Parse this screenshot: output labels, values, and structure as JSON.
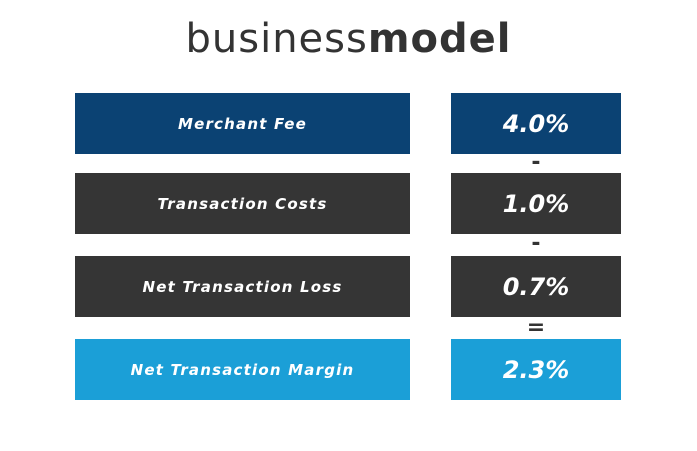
{
  "title": {
    "light": "business",
    "bold": "model"
  },
  "rows": [
    {
      "label": "Merchant Fee",
      "value": "4.0%"
    },
    {
      "label": "Transaction Costs",
      "value": "1.0%"
    },
    {
      "label": "Net Transaction Loss",
      "value": "0.7%"
    },
    {
      "label": "Net Transaction Margin",
      "value": "2.3%"
    }
  ],
  "operators": [
    "-",
    "-",
    "="
  ]
}
